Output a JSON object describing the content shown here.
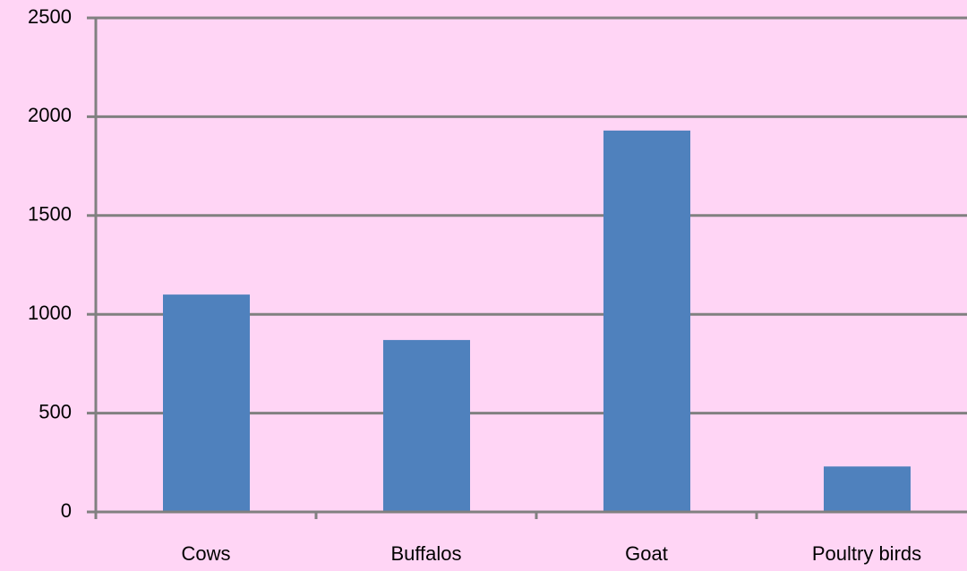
{
  "chart_data": {
    "type": "bar",
    "categories": [
      "Cows",
      "Buffalos",
      "Goat",
      "Poultry birds"
    ],
    "values": [
      1100,
      870,
      1930,
      230
    ],
    "color": "#4f81bd",
    "ylim": [
      0,
      2500
    ],
    "yticks": [
      0,
      500,
      1000,
      1500,
      2000,
      2500
    ],
    "grid": true
  }
}
